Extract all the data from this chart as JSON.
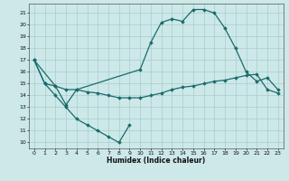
{
  "xlabel": "Humidex (Indice chaleur)",
  "xlim": [
    -0.5,
    23.5
  ],
  "ylim": [
    9.5,
    21.8
  ],
  "yticks": [
    10,
    11,
    12,
    13,
    14,
    15,
    16,
    17,
    18,
    19,
    20,
    21
  ],
  "xticks": [
    0,
    1,
    2,
    3,
    4,
    5,
    6,
    7,
    8,
    9,
    10,
    11,
    12,
    13,
    14,
    15,
    16,
    17,
    18,
    19,
    20,
    21,
    22,
    23
  ],
  "bg_color": "#cce8e8",
  "grid_color": "#aacccc",
  "line_color": "#1a6b6b",
  "line_width": 0.9,
  "marker": "D",
  "marker_size": 1.8,
  "lines": [
    {
      "x": [
        0,
        1,
        2,
        3,
        4,
        5,
        6,
        7,
        8,
        9
      ],
      "y": [
        17,
        15,
        14,
        13,
        12,
        11.5,
        11,
        10.5,
        10,
        11.5
      ]
    },
    {
      "x": [
        0,
        1,
        2,
        3,
        4,
        5,
        6,
        7,
        8,
        9,
        10,
        11,
        12,
        13,
        14,
        15,
        16,
        17,
        18,
        19,
        20,
        21,
        22,
        23
      ],
      "y": [
        17,
        15,
        14.8,
        14.5,
        14.5,
        14.3,
        14.2,
        14.0,
        13.8,
        13.8,
        13.8,
        14.0,
        14.2,
        14.5,
        14.7,
        14.8,
        15.0,
        15.2,
        15.3,
        15.5,
        15.7,
        15.8,
        14.5,
        14.2
      ]
    },
    {
      "x": [
        0,
        2,
        3,
        4,
        10,
        11,
        12,
        13,
        14,
        15,
        16,
        17,
        18,
        19,
        20,
        21,
        22,
        23
      ],
      "y": [
        17,
        14.8,
        13.2,
        14.5,
        16.2,
        18.5,
        20.2,
        20.5,
        20.3,
        21.3,
        21.3,
        21.0,
        19.7,
        18.0,
        16.0,
        15.2,
        15.5,
        14.5
      ]
    }
  ]
}
